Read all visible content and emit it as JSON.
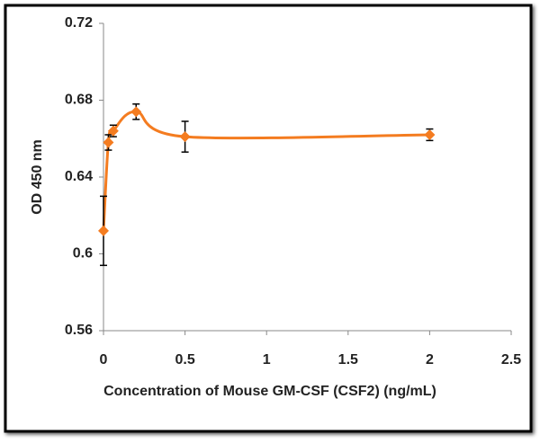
{
  "chart_data": {
    "type": "scatter",
    "x_label": "Concentration of Mouse  GM-CSF (CSF2) (ng/mL)",
    "y_label": "OD 450 nm",
    "x": [
      0,
      0.03,
      0.06,
      0.2,
      0.5,
      2
    ],
    "values": [
      0.612,
      0.658,
      0.664,
      0.674,
      0.661,
      0.662
    ],
    "errors": [
      0.018,
      0.004,
      0.003,
      0.004,
      0.008,
      0.003
    ],
    "color": "#f47c20",
    "xlim": [
      0,
      2.5
    ],
    "xticks": [
      0,
      0.5,
      1,
      1.5,
      2,
      2.5
    ],
    "ylim": [
      0.56,
      0.72
    ],
    "yticks": [
      0.56,
      0.6,
      0.64,
      0.68,
      0.72
    ],
    "grid": false
  }
}
